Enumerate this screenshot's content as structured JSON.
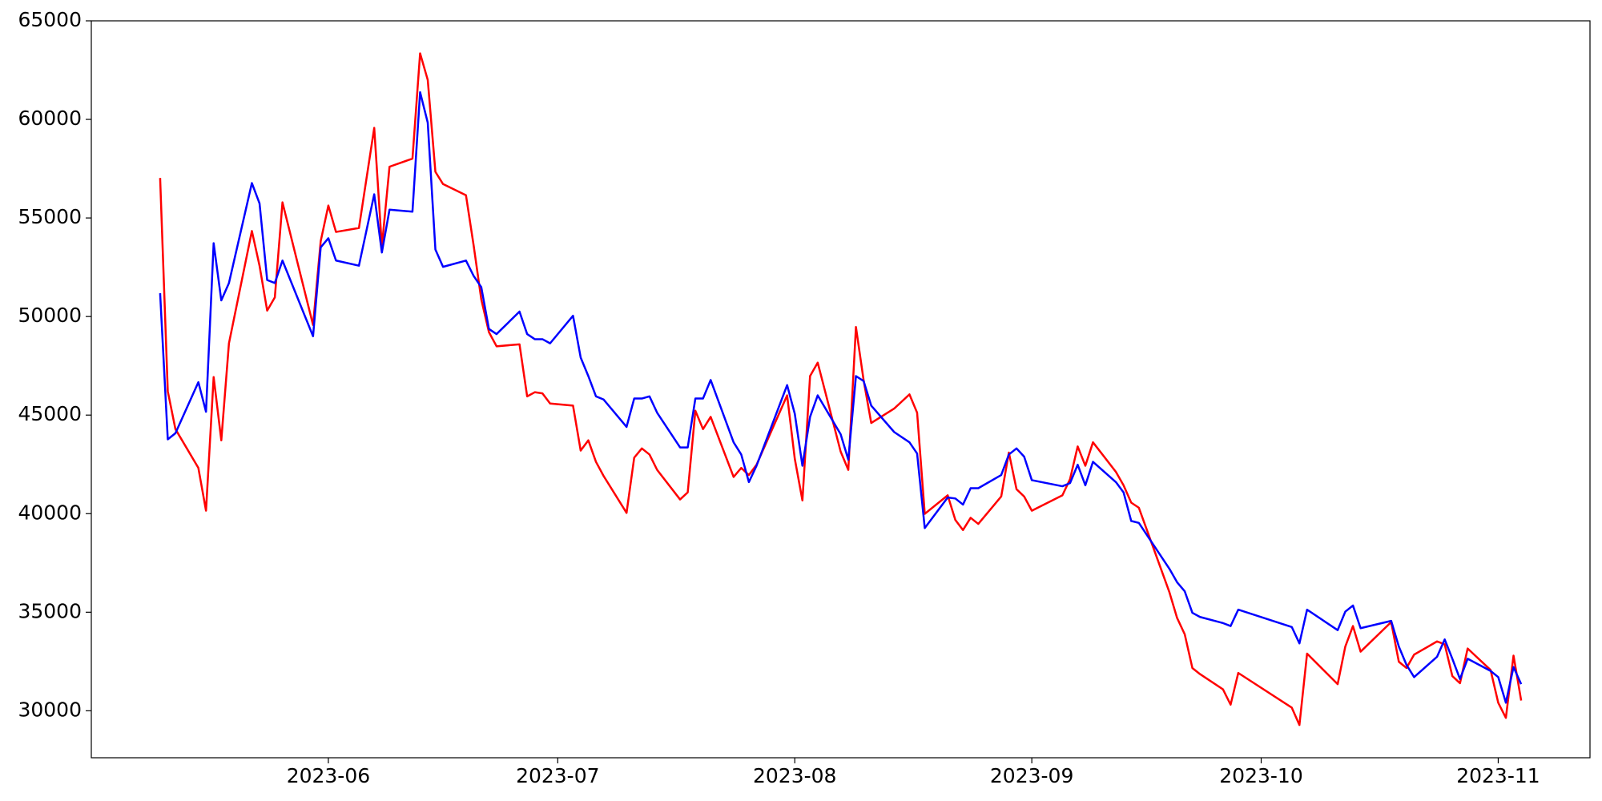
{
  "chart_data": {
    "type": "line",
    "x": [
      "2023-05-10",
      "2023-05-11",
      "2023-05-12",
      "2023-05-15",
      "2023-05-16",
      "2023-05-17",
      "2023-05-18",
      "2023-05-19",
      "2023-05-22",
      "2023-05-23",
      "2023-05-24",
      "2023-05-25",
      "2023-05-26",
      "2023-05-30",
      "2023-05-31",
      "2023-06-01",
      "2023-06-02",
      "2023-06-05",
      "2023-06-07",
      "2023-06-08",
      "2023-06-09",
      "2023-06-12",
      "2023-06-13",
      "2023-06-14",
      "2023-06-15",
      "2023-06-16",
      "2023-06-19",
      "2023-06-20",
      "2023-06-21",
      "2023-06-22",
      "2023-06-23",
      "2023-06-26",
      "2023-06-27",
      "2023-06-28",
      "2023-06-29",
      "2023-06-30",
      "2023-07-03",
      "2023-07-04",
      "2023-07-05",
      "2023-07-06",
      "2023-07-07",
      "2023-07-10",
      "2023-07-11",
      "2023-07-12",
      "2023-07-13",
      "2023-07-14",
      "2023-07-17",
      "2023-07-18",
      "2023-07-19",
      "2023-07-20",
      "2023-07-21",
      "2023-07-24",
      "2023-07-25",
      "2023-07-26",
      "2023-07-27",
      "2023-07-31",
      "2023-08-01",
      "2023-08-02",
      "2023-08-03",
      "2023-08-04",
      "2023-08-07",
      "2023-08-08",
      "2023-08-09",
      "2023-08-10",
      "2023-08-11",
      "2023-08-14",
      "2023-08-16",
      "2023-08-17",
      "2023-08-18",
      "2023-08-21",
      "2023-08-22",
      "2023-08-23",
      "2023-08-24",
      "2023-08-25",
      "2023-08-28",
      "2023-08-29",
      "2023-08-30",
      "2023-08-31",
      "2023-09-01",
      "2023-09-05",
      "2023-09-06",
      "2023-09-07",
      "2023-09-08",
      "2023-09-09",
      "2023-09-12",
      "2023-09-13",
      "2023-09-14",
      "2023-09-15",
      "2023-09-19",
      "2023-09-20",
      "2023-09-21",
      "2023-09-22",
      "2023-09-23",
      "2023-09-26",
      "2023-09-27",
      "2023-09-28",
      "2023-10-05",
      "2023-10-06",
      "2023-10-07",
      "2023-10-11",
      "2023-10-12",
      "2023-10-13",
      "2023-10-14",
      "2023-10-18",
      "2023-10-19",
      "2023-10-20",
      "2023-10-21",
      "2023-10-24",
      "2023-10-25",
      "2023-10-26",
      "2023-10-27",
      "2023-10-28",
      "2023-10-31",
      "2023-11-01",
      "2023-11-02",
      "2023-11-03",
      "2023-11-04"
    ],
    "series": [
      {
        "color": "#ff0000",
        "values": [
          57030,
          46210,
          44290,
          42320,
          40150,
          46930,
          43720,
          48640,
          54340,
          52580,
          50300,
          50970,
          55790,
          49570,
          53820,
          55630,
          54290,
          54490,
          59570,
          53560,
          57600,
          58010,
          63350,
          62000,
          57340,
          56720,
          56150,
          53610,
          50870,
          49210,
          48490,
          48590,
          45950,
          46160,
          46100,
          45590,
          45480,
          43200,
          43720,
          42630,
          41910,
          40040,
          42840,
          43310,
          43000,
          42220,
          40720,
          41080,
          45220,
          44290,
          44910,
          41860,
          42320,
          41960,
          42480,
          46000,
          42790,
          40670,
          46980,
          47660,
          43150,
          42220,
          49470,
          46780,
          44600,
          45330,
          46050,
          45120,
          39990,
          40930,
          39680,
          39170,
          39790,
          39480,
          40870,
          43100,
          41240,
          40870,
          40150,
          40930,
          41750,
          43410,
          42430,
          43620,
          42120,
          41440,
          40560,
          40300,
          36010,
          34710,
          33880,
          32170,
          31860,
          31090,
          30310,
          31920,
          30160,
          29280,
          32900,
          31350,
          33260,
          34300,
          33000,
          34500,
          32490,
          32170,
          32850,
          33520,
          33370,
          31760,
          31400,
          33160,
          32070,
          30410,
          29640,
          32800,
          30520
        ]
      },
      {
        "color": "#0000ff",
        "values": [
          51180,
          43770,
          44080,
          46670,
          45170,
          53720,
          50820,
          51700,
          56770,
          55740,
          51850,
          51700,
          52840,
          49000,
          53510,
          53970,
          52840,
          52580,
          56200,
          53250,
          55420,
          55320,
          61380,
          59830,
          53400,
          52520,
          52840,
          52060,
          51490,
          49370,
          49110,
          50250,
          49110,
          48850,
          48850,
          48640,
          50040,
          47920,
          46980,
          45950,
          45790,
          44400,
          45840,
          45840,
          45950,
          45120,
          43360,
          43360,
          45840,
          45840,
          46780,
          43620,
          43000,
          41600,
          42430,
          46520,
          45070,
          42430,
          44910,
          46000,
          44030,
          42740,
          46980,
          46730,
          45480,
          44140,
          43620,
          43050,
          39270,
          40820,
          40770,
          40460,
          41290,
          41290,
          41960,
          43000,
          43310,
          42890,
          41700,
          41390,
          41550,
          42480,
          41440,
          42630,
          41600,
          41080,
          39630,
          39530,
          37200,
          36520,
          36060,
          34970,
          34760,
          34450,
          34300,
          35130,
          34250,
          33420,
          35130,
          34090,
          35030,
          35340,
          34190,
          34560,
          33260,
          32330,
          31710,
          32740,
          33620,
          32640,
          31610,
          32640,
          32020,
          31710,
          30410,
          32220,
          31350
        ]
      }
    ],
    "xlim": [
      "2023-05-01",
      "2023-11-13"
    ],
    "xticks": [
      {
        "value": "2023-06-01",
        "label": "2023-06"
      },
      {
        "value": "2023-07-01",
        "label": "2023-07"
      },
      {
        "value": "2023-08-01",
        "label": "2023-08"
      },
      {
        "value": "2023-09-01",
        "label": "2023-09"
      },
      {
        "value": "2023-10-01",
        "label": "2023-10"
      },
      {
        "value": "2023-11-01",
        "label": "2023-11"
      }
    ],
    "ylim": [
      27618,
      65000
    ],
    "yticks": [
      30000,
      35000,
      40000,
      45000,
      50000,
      55000,
      60000,
      65000
    ],
    "grid": false
  }
}
